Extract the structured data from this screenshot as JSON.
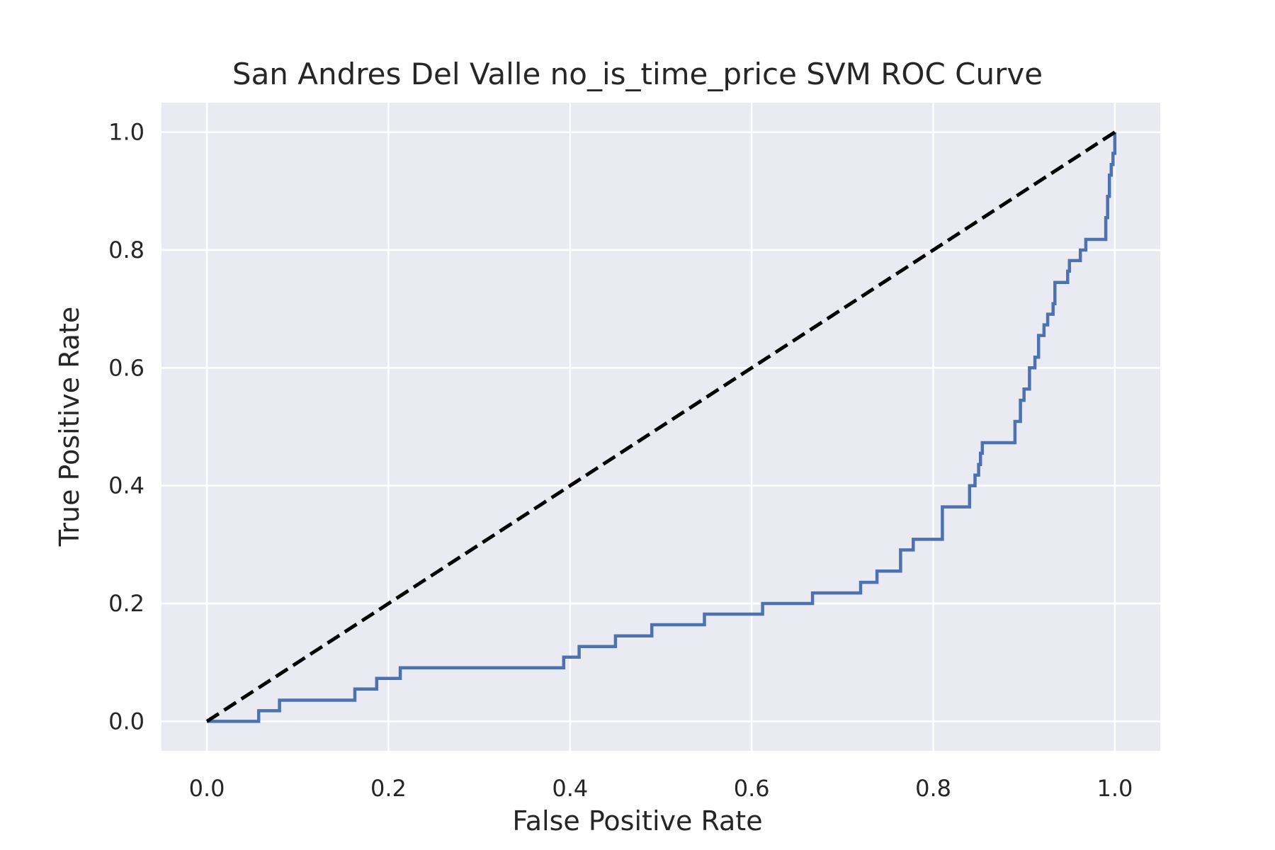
{
  "chart_data": {
    "type": "line",
    "title": "San Andres Del Valle no_is_time_price SVM ROC Curve",
    "xlabel": "False Positive Rate",
    "ylabel": "True Positive Rate",
    "xlim": [
      -0.05,
      1.05
    ],
    "ylim": [
      -0.05,
      1.05
    ],
    "xticks": [
      0.0,
      0.2,
      0.4,
      0.6,
      0.8,
      1.0
    ],
    "xtick_labels": [
      "0.0",
      "0.2",
      "0.4",
      "0.6",
      "0.8",
      "1.0"
    ],
    "yticks": [
      0.0,
      0.2,
      0.4,
      0.6,
      0.8,
      1.0
    ],
    "ytick_labels": [
      "0.0",
      "0.2",
      "0.4",
      "0.6",
      "0.8",
      "1.0"
    ],
    "grid": true,
    "colors": {
      "background": "#eaeaf2",
      "grid": "#ffffff",
      "roc": "#4c72b0",
      "diagonal": "#000000"
    },
    "series": [
      {
        "style": "solid",
        "x": [
          0.0,
          0.057,
          0.057,
          0.08,
          0.08,
          0.163,
          0.163,
          0.187,
          0.187,
          0.213,
          0.213,
          0.393,
          0.393,
          0.41,
          0.41,
          0.45,
          0.45,
          0.49,
          0.49,
          0.548,
          0.548,
          0.612,
          0.612,
          0.667,
          0.667,
          0.72,
          0.72,
          0.738,
          0.738,
          0.764,
          0.764,
          0.778,
          0.778,
          0.81,
          0.81,
          0.84,
          0.84,
          0.846,
          0.846,
          0.85,
          0.85,
          0.852,
          0.852,
          0.854,
          0.854,
          0.89,
          0.89,
          0.896,
          0.896,
          0.9,
          0.9,
          0.906,
          0.906,
          0.912,
          0.912,
          0.916,
          0.916,
          0.922,
          0.922,
          0.926,
          0.926,
          0.932,
          0.932,
          0.934,
          0.934,
          0.948,
          0.948,
          0.95,
          0.95,
          0.962,
          0.962,
          0.968,
          0.968,
          0.99,
          0.99,
          0.992,
          0.992,
          0.994,
          0.994,
          0.996,
          0.996,
          0.998,
          0.998,
          1.0,
          1.0
        ],
        "y": [
          0.0,
          0.0,
          0.018,
          0.018,
          0.036,
          0.036,
          0.055,
          0.055,
          0.073,
          0.073,
          0.091,
          0.091,
          0.109,
          0.109,
          0.127,
          0.127,
          0.145,
          0.145,
          0.164,
          0.164,
          0.182,
          0.182,
          0.2,
          0.2,
          0.218,
          0.218,
          0.236,
          0.236,
          0.255,
          0.255,
          0.291,
          0.291,
          0.309,
          0.309,
          0.364,
          0.364,
          0.4,
          0.4,
          0.418,
          0.418,
          0.436,
          0.436,
          0.455,
          0.455,
          0.473,
          0.473,
          0.509,
          0.509,
          0.545,
          0.545,
          0.564,
          0.564,
          0.6,
          0.6,
          0.618,
          0.618,
          0.655,
          0.655,
          0.673,
          0.673,
          0.691,
          0.691,
          0.709,
          0.709,
          0.745,
          0.745,
          0.764,
          0.764,
          0.782,
          0.782,
          0.8,
          0.8,
          0.818,
          0.818,
          0.855,
          0.855,
          0.891,
          0.891,
          0.927,
          0.927,
          0.945,
          0.945,
          0.964,
          0.964,
          1.0
        ]
      },
      {
        "style": "dashed",
        "x": [
          0.0,
          1.0
        ],
        "y": [
          0.0,
          1.0
        ]
      }
    ]
  }
}
